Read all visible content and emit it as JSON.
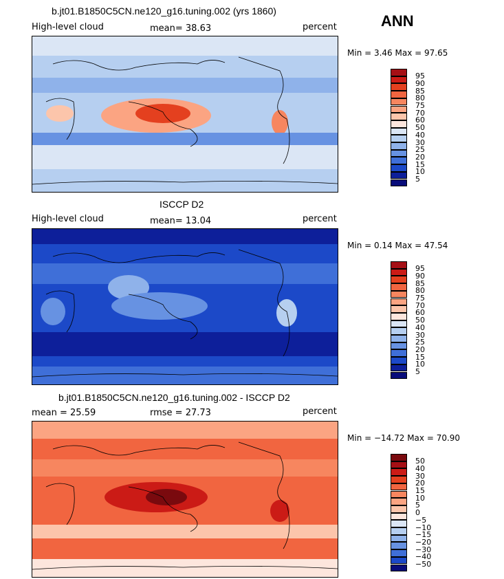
{
  "season": "ANN",
  "chart_data": [
    {
      "type": "heatmap",
      "title": "b.jt01.B1850C5CN.ne120_g16.tuning.002 (yrs 1860)",
      "left_label": "High-level cloud",
      "center_label": "mean=  38.63",
      "right_label": "percent",
      "min_max": "Min =   3.46 Max =  97.65",
      "mean": 38.63,
      "min": 3.46,
      "max": 97.65,
      "colorbar_levels": [
        "95",
        "90",
        "85",
        "80",
        "75",
        "70",
        "60",
        "50",
        "40",
        "30",
        "25",
        "20",
        "15",
        "10",
        "5"
      ],
      "colorbar_colors": [
        "#a50f15",
        "#cb1b16",
        "#e4401f",
        "#f16540",
        "#f7865f",
        "#fba482",
        "#fcc5ab",
        "#fde6dd",
        "#dbe6f5",
        "#b6cff0",
        "#8fb2ea",
        "#6792e2",
        "#3f6fd8",
        "#1c49c8",
        "#0d1f9a",
        "#080c7a"
      ]
    },
    {
      "type": "heatmap",
      "title": "ISCCP D2",
      "left_label": "High-level cloud",
      "center_label": "mean=  13.04",
      "right_label": "percent",
      "min_max": "Min =   0.14 Max =  47.54",
      "mean": 13.04,
      "min": 0.14,
      "max": 47.54,
      "colorbar_levels": [
        "95",
        "90",
        "85",
        "80",
        "75",
        "70",
        "60",
        "50",
        "40",
        "30",
        "25",
        "20",
        "15",
        "10",
        "5"
      ],
      "colorbar_colors": [
        "#a50f15",
        "#cb1b16",
        "#e4401f",
        "#f16540",
        "#f7865f",
        "#fba482",
        "#fcc5ab",
        "#fde6dd",
        "#dbe6f5",
        "#b6cff0",
        "#8fb2ea",
        "#6792e2",
        "#3f6fd8",
        "#1c49c8",
        "#0d1f9a",
        "#080c7a"
      ]
    },
    {
      "type": "heatmap",
      "title": "b.jt01.B1850C5CN.ne120_g16.tuning.002 - ISCCP D2",
      "left_label": "mean =   25.59",
      "center_label": "rmse =   27.73",
      "right_label": "percent",
      "min_max": "Min = −14.72 Max =  70.90",
      "mean": 25.59,
      "rmse": 27.73,
      "min": -14.72,
      "max": 70.9,
      "colorbar_levels": [
        "50",
        "40",
        "30",
        "20",
        "15",
        "10",
        "5",
        "0",
        "−5",
        "−10",
        "−15",
        "−20",
        "−30",
        "−40",
        "−50"
      ],
      "colorbar_colors": [
        "#7a0a0e",
        "#a50f15",
        "#cb1b16",
        "#e4401f",
        "#f16540",
        "#f7865f",
        "#fba482",
        "#fcc5ab",
        "#fde6dd",
        "#dbe6f5",
        "#b6cff0",
        "#8fb2ea",
        "#6792e2",
        "#3f6fd8",
        "#1c49c8",
        "#080c7a"
      ]
    }
  ]
}
